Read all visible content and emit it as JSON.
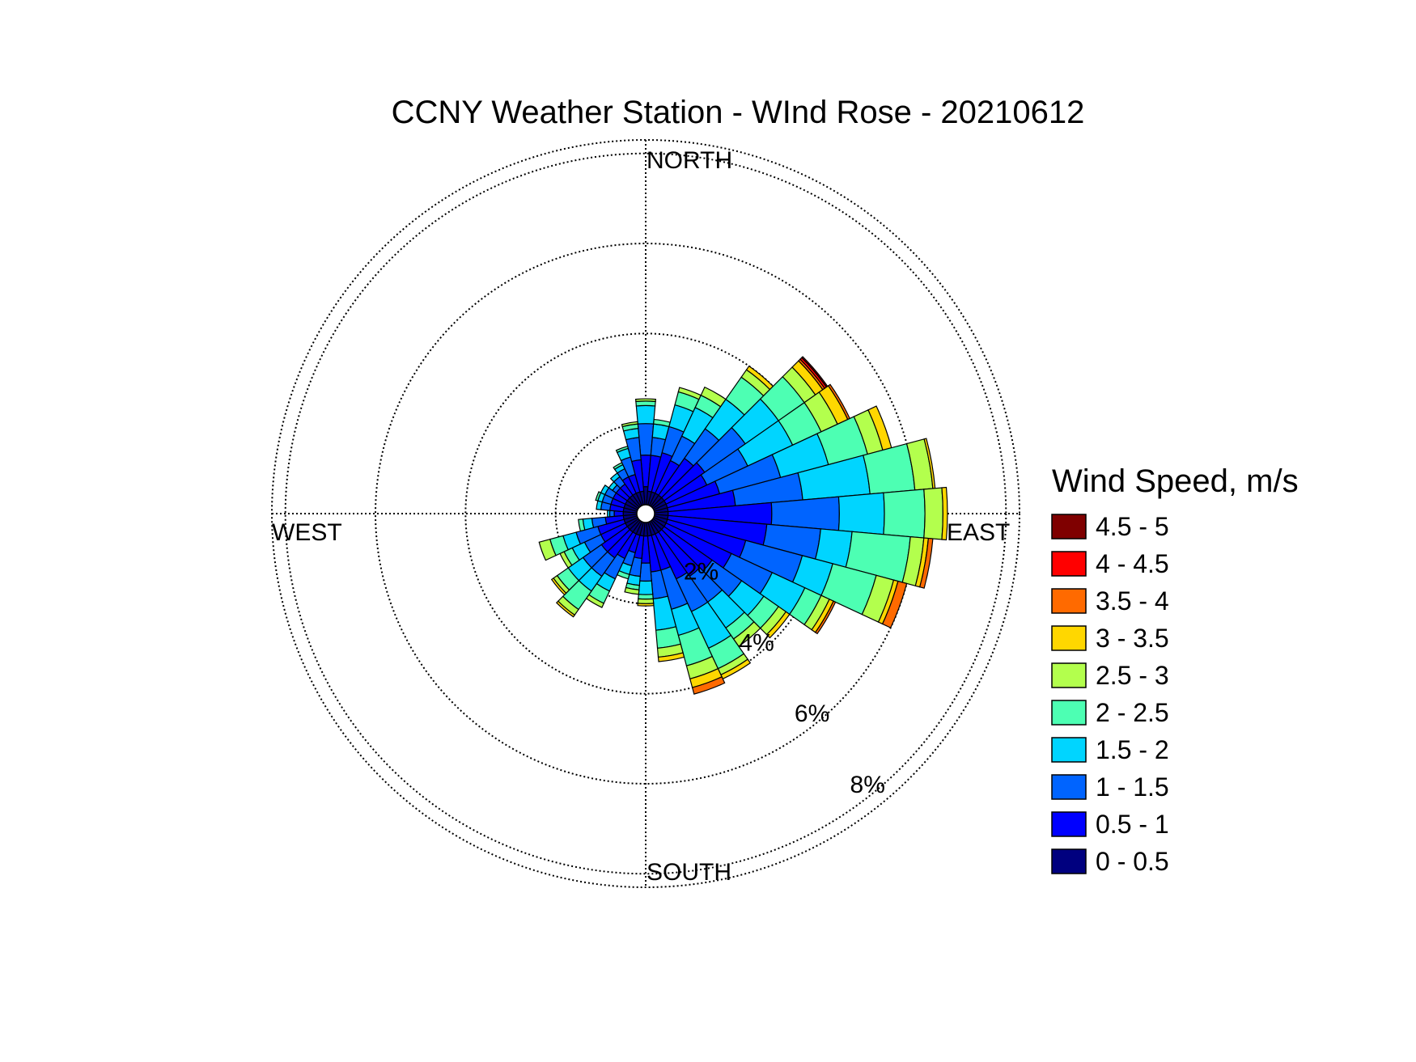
{
  "chart_data": {
    "type": "wind-rose",
    "title": "CCNY Weather Station - WInd Rose - 20210612",
    "directions": {
      "north": "NORTH",
      "east": "EAST",
      "south": "SOUTH",
      "west": "WEST"
    },
    "radial_ticks": [
      {
        "value": 2,
        "label": "2%"
      },
      {
        "value": 4,
        "label": "4%"
      },
      {
        "value": 6,
        "label": "6%"
      },
      {
        "value": 8,
        "label": "8%"
      }
    ],
    "rmax": 8.3,
    "grid": true,
    "legend": {
      "title": "Wind Speed, m/s",
      "placement": "right",
      "bins": [
        {
          "label": "0 - 0.5",
          "color": "#00007f"
        },
        {
          "label": "0.5 - 1",
          "color": "#0000ff"
        },
        {
          "label": "1 - 1.5",
          "color": "#0064ff"
        },
        {
          "label": "1.5 - 2",
          "color": "#00d5ff"
        },
        {
          "label": "2 - 2.5",
          "color": "#4dffb3"
        },
        {
          "label": "2.5 - 3",
          "color": "#b3ff4d"
        },
        {
          "label": "3 - 3.5",
          "color": "#ffd700"
        },
        {
          "label": "3.5 - 4",
          "color": "#ff6a00"
        },
        {
          "label": "4 - 4.5",
          "color": "#ff0000"
        },
        {
          "label": "4.5 - 5",
          "color": "#7f0000"
        }
      ]
    },
    "sector_width_deg": 10,
    "sectors": [
      {
        "dir": 0,
        "values": [
          0.6,
          0.7,
          0.7,
          0.4,
          0.1,
          0.05
        ]
      },
      {
        "dir": 10,
        "values": [
          0.5,
          0.8,
          0.4,
          0.3,
          0.1
        ]
      },
      {
        "dir": 20,
        "values": [
          0.5,
          0.9,
          0.6,
          0.5,
          0.3,
          0.1
        ]
      },
      {
        "dir": 30,
        "values": [
          0.5,
          0.8,
          0.6,
          0.7,
          0.3,
          0.2
        ]
      },
      {
        "dir": 40,
        "values": [
          0.5,
          1.0,
          0.8,
          0.8,
          0.6,
          0.2,
          0.1
        ]
      },
      {
        "dir": 50,
        "values": [
          0.5,
          1.1,
          1.1,
          0.9,
          0.7,
          0.3,
          0.2,
          0.05,
          0.05,
          0.03
        ]
      },
      {
        "dir": 60,
        "values": [
          0.5,
          1.0,
          1.0,
          1.1,
          0.7,
          0.4,
          0.25,
          0.05
        ]
      },
      {
        "dir": 70,
        "values": [
          0.5,
          1.2,
          1.4,
          1.1,
          0.9,
          0.35,
          0.2
        ]
      },
      {
        "dir": 80,
        "values": [
          0.5,
          1.5,
          1.5,
          1.5,
          1.0,
          0.4,
          0.05
        ]
      },
      {
        "dir": 90,
        "values": [
          0.5,
          2.3,
          1.5,
          1.0,
          0.9,
          0.4,
          0.1
        ]
      },
      {
        "dir": 100,
        "values": [
          0.5,
          2.2,
          1.2,
          0.7,
          1.3,
          0.3,
          0.1,
          0.1
        ]
      },
      {
        "dir": 110,
        "values": [
          0.5,
          1.8,
          1.3,
          0.7,
          1.0,
          0.4,
          0.1,
          0.2
        ]
      },
      {
        "dir": 120,
        "values": [
          0.5,
          1.6,
          1.0,
          0.8,
          0.4,
          0.2,
          0.1,
          0.05
        ]
      },
      {
        "dir": 130,
        "values": [
          0.5,
          1.3,
          0.8,
          0.6,
          0.4,
          0.2,
          0.1
        ]
      },
      {
        "dir": 140,
        "values": [
          0.5,
          1.2,
          0.7,
          0.7,
          0.3,
          0.2
        ]
      },
      {
        "dir": 150,
        "values": [
          0.5,
          1.1,
          0.8,
          0.9,
          0.5,
          0.15,
          0.1
        ]
      },
      {
        "dir": 160,
        "values": [
          0.5,
          0.8,
          0.9,
          0.6,
          0.7,
          0.3,
          0.2,
          0.15
        ]
      },
      {
        "dir": 170,
        "values": [
          0.5,
          0.8,
          0.6,
          0.7,
          0.4,
          0.2,
          0.1
        ]
      },
      {
        "dir": 180,
        "values": [
          0.5,
          0.6,
          0.4,
          0.3,
          0.1,
          0.1,
          0.05
        ]
      },
      {
        "dir": 190,
        "values": [
          0.5,
          0.5,
          0.4,
          0.2,
          0.1,
          0.1
        ]
      },
      {
        "dir": 200,
        "values": [
          0.5,
          0.4,
          0.3,
          0.2,
          0.1
        ]
      },
      {
        "dir": 210,
        "values": [
          0.5,
          0.6,
          0.5,
          0.3,
          0.3,
          0.1
        ]
      },
      {
        "dir": 220,
        "values": [
          0.5,
          0.7,
          0.5,
          0.4,
          0.5,
          0.15,
          0.05
        ]
      },
      {
        "dir": 230,
        "values": [
          0.5,
          0.7,
          0.5,
          0.4,
          0.3,
          0.1,
          0.05
        ]
      },
      {
        "dir": 240,
        "values": [
          0.5,
          0.6,
          0.4,
          0.3,
          0.2,
          0.1
        ]
      },
      {
        "dir": 250,
        "values": [
          0.5,
          0.6,
          0.5,
          0.3,
          0.3,
          0.25
        ]
      },
      {
        "dir": 260,
        "values": [
          0.5,
          0.4,
          0.3,
          0.2,
          0.1
        ]
      },
      {
        "dir": 270,
        "values": [
          0.5,
          0.2,
          0.1,
          0.05
        ]
      },
      {
        "dir": 280,
        "values": [
          0.5,
          0.3,
          0.2,
          0.1
        ]
      },
      {
        "dir": 290,
        "values": [
          0.5,
          0.3,
          0.2,
          0.1,
          0.05
        ]
      },
      {
        "dir": 300,
        "values": [
          0.5,
          0.3,
          0.2,
          0.1
        ]
      },
      {
        "dir": 310,
        "values": [
          0.5,
          0.3,
          0.1,
          0.1
        ]
      },
      {
        "dir": 320,
        "values": [
          0.5,
          0.3,
          0.2,
          0.1
        ]
      },
      {
        "dir": 330,
        "values": [
          0.5,
          0.4,
          0.2,
          0.1,
          0.05
        ]
      },
      {
        "dir": 340,
        "values": [
          0.5,
          0.4,
          0.4,
          0.2,
          0.05
        ]
      },
      {
        "dir": 350,
        "values": [
          0.5,
          0.7,
          0.5,
          0.2,
          0.1,
          0.05
        ]
      }
    ]
  }
}
